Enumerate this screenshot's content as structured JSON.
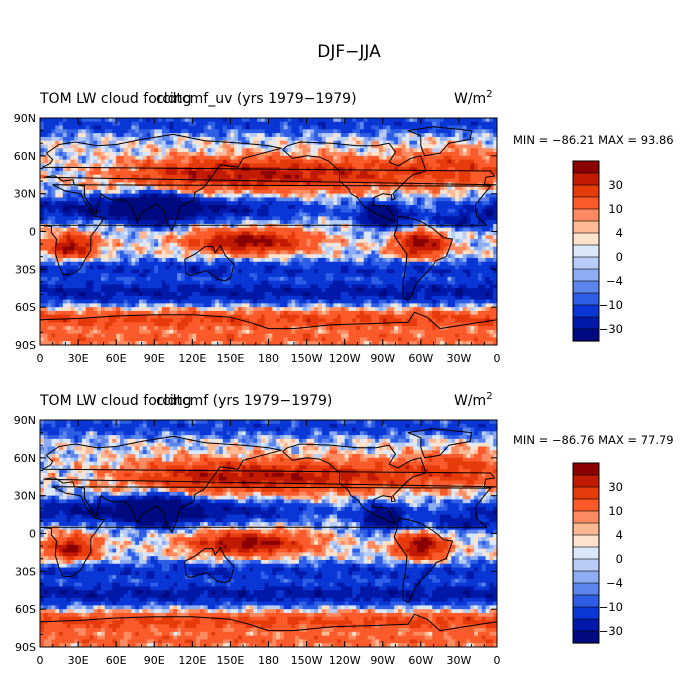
{
  "figure_title": "DJF−JJA",
  "chart_data": [
    {
      "type": "heatmap",
      "title": "TOM LW cloud forcing",
      "title_overlay": "cldtcmf_uv (yrs 1979−1979)",
      "units_base": "W/m",
      "units_exp": "2",
      "stats_text": "MIN = −86.21   MAX =  93.86",
      "min": -86.21,
      "max": 93.86,
      "ylabels": [
        "90N",
        "60N",
        "30N",
        "0",
        "30S",
        "60S",
        "90S"
      ],
      "xlabels": [
        "0",
        "30E",
        "60E",
        "90E",
        "120E",
        "150E",
        "180",
        "150W",
        "120W",
        "90W",
        "60W",
        "30W",
        "0"
      ],
      "colorbar_labels": [
        "30",
        "10",
        "4",
        "0",
        "−4",
        "−10",
        "−30"
      ],
      "colors": [
        "#8b0000",
        "#c11a00",
        "#e63b0b",
        "#fb5a2a",
        "#fd8a60",
        "#fdb894",
        "#fde3cd",
        "#dbe8fb",
        "#b7cdf7",
        "#8eacf3",
        "#5d86ec",
        "#2e5ee6",
        "#0a36d6",
        "#0019a8",
        "#000a80"
      ]
    },
    {
      "type": "heatmap",
      "title": "TOM LW cloud forcing",
      "title_overlay": "cldtcmf (yrs 1979−1979)",
      "units_base": "W/m",
      "units_exp": "2",
      "stats_text": "MIN = −86.76   MAX =  77.79",
      "min": -86.76,
      "max": 77.79,
      "ylabels": [
        "90N",
        "60N",
        "30N",
        "0",
        "30S",
        "60S",
        "90S"
      ],
      "xlabels": [
        "0",
        "30E",
        "60E",
        "90E",
        "120E",
        "150E",
        "180",
        "150W",
        "120W",
        "90W",
        "60W",
        "30W",
        "0"
      ],
      "colorbar_labels": [
        "30",
        "10",
        "4",
        "0",
        "−4",
        "−10",
        "−30"
      ],
      "colors": [
        "#8b0000",
        "#c11a00",
        "#e63b0b",
        "#fb5a2a",
        "#fd8a60",
        "#fdb894",
        "#fde3cd",
        "#dbe8fb",
        "#b7cdf7",
        "#8eacf3",
        "#5d86ec",
        "#2e5ee6",
        "#0a36d6",
        "#0019a8",
        "#000a80"
      ]
    }
  ]
}
